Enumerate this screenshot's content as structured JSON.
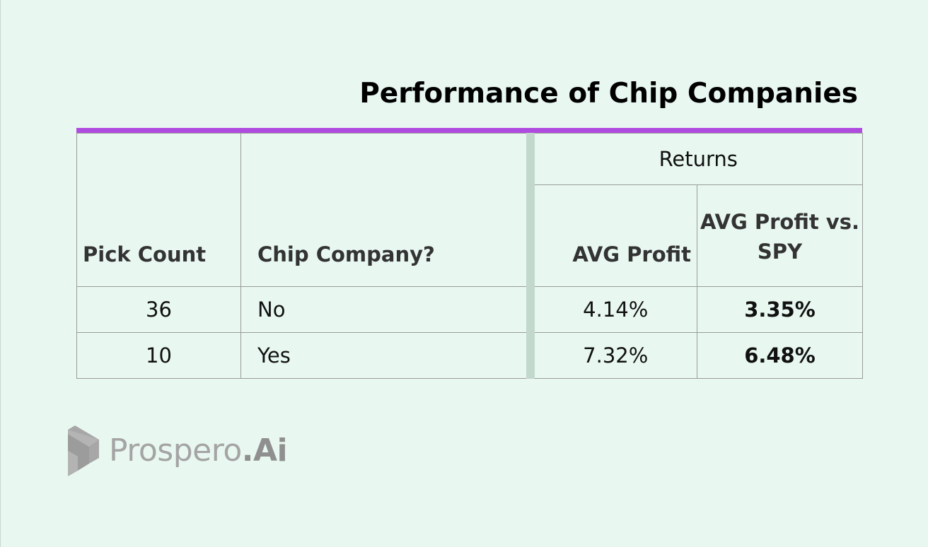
{
  "title": "Performance of Chip Companies",
  "colors": {
    "background": "#e8f8f0",
    "accent_bar": "#b04be0",
    "group_separator": "#c3d8cc",
    "border": "#9a9a9a",
    "logo_gray": "#a4a4a4"
  },
  "table": {
    "group_header": "Returns",
    "columns": [
      "Pick Count",
      "Chip Company?",
      "AVG Profit",
      "AVG Profit vs. SPY"
    ],
    "rows": [
      {
        "pick_count": "36",
        "chip_company": "No",
        "avg_profit": "4.14%",
        "avg_profit_vs_spy": "3.35%"
      },
      {
        "pick_count": "10",
        "chip_company": "Yes",
        "avg_profit": "7.32%",
        "avg_profit_vs_spy": "6.48%"
      }
    ]
  },
  "logo": {
    "name": "Prospero",
    "suffix": ".Ai",
    "icon": "prospero-logo-icon"
  }
}
